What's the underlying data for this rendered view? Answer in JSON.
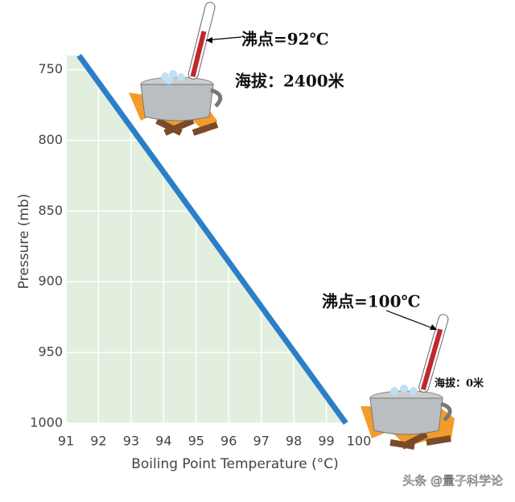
{
  "chart_data": {
    "type": "line",
    "xlabel": "Boiling Point Temperature (°C)",
    "ylabel": "Pressure (mb)",
    "x": [
      91.4,
      99.6
    ],
    "series": [
      {
        "name": "Boiling point",
        "color": "#2b7fc8",
        "values": [
          740,
          1000
        ]
      }
    ],
    "xlim": [
      91,
      100
    ],
    "ylim": [
      740,
      1000
    ],
    "y_inverted": true,
    "xticks": [
      91,
      92,
      93,
      94,
      95,
      96,
      97,
      98,
      99,
      100
    ],
    "yticks": [
      750,
      800,
      850,
      900,
      950,
      1000
    ],
    "fill_color": "#e2efdf",
    "grid": true,
    "annotations": [
      "沸点=92℃",
      "海拔：2400米",
      "沸点=100℃",
      "海拔：0米"
    ],
    "watermark": "头条 @量子科学论"
  }
}
